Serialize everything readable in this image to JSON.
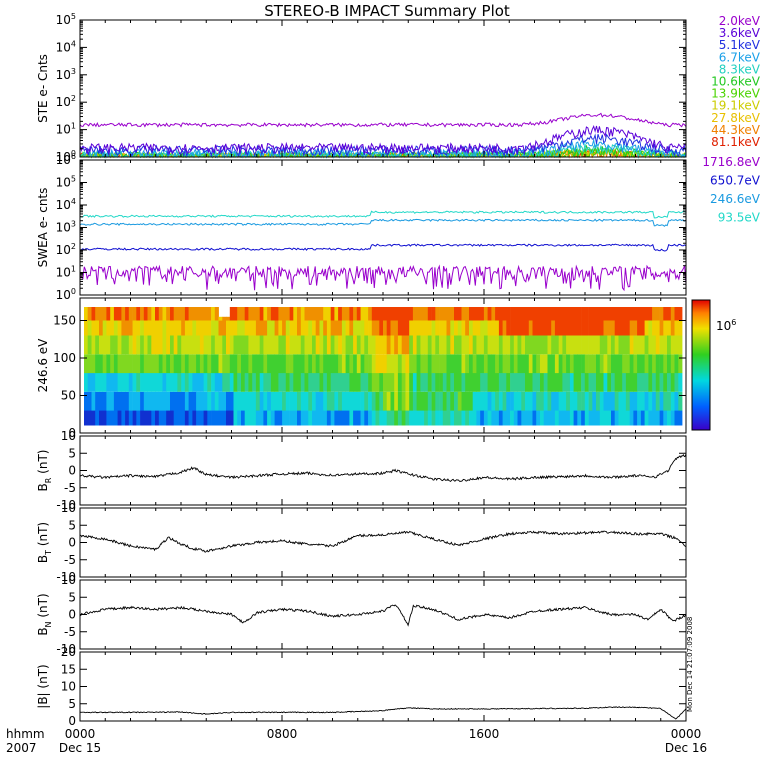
{
  "title": "STEREO-B IMPACT Summary Plot",
  "stamp": "Mon Dec 14 21:07:09 2008",
  "time_axis": {
    "corner_top": "hhmm",
    "corner_bottom": "2007",
    "ticks": [
      {
        "hour": 0,
        "label": "0000",
        "date": "Dec 15"
      },
      {
        "hour": 8,
        "label": "0800",
        "date": ""
      },
      {
        "hour": 16,
        "label": "1600",
        "date": ""
      },
      {
        "hour": 24,
        "label": "0000",
        "date": "Dec 16"
      }
    ]
  },
  "chart_data": [
    {
      "id": "ste",
      "type": "line",
      "ylabel": "STE e- Cnts",
      "yscale": "log",
      "ylim_exp": [
        0,
        5
      ],
      "x_range_hours": [
        0,
        24
      ],
      "series": [
        {
          "name": "2.0keV",
          "color": "#9900cc",
          "level": 15
        },
        {
          "name": "3.6keV",
          "color": "#5a00d8",
          "level": 2.2
        },
        {
          "name": "5.1keV",
          "color": "#2030e0",
          "level": 1.8
        },
        {
          "name": "6.7keV",
          "color": "#1aa0e8",
          "level": 1.4
        },
        {
          "name": "8.3keV",
          "color": "#22d0c0",
          "level": 1.2
        },
        {
          "name": "10.6keV",
          "color": "#22c822",
          "level": 1.1
        },
        {
          "name": "13.9keV",
          "color": "#4ad400",
          "level": 1.05
        },
        {
          "name": "19.1keV",
          "color": "#cccc00",
          "level": 1.02
        },
        {
          "name": "27.8keV",
          "color": "#e8c000",
          "level": 1.01
        },
        {
          "name": "44.3keV",
          "color": "#f08000",
          "level": 1.0
        },
        {
          "name": "81.1keV",
          "color": "#e02000",
          "level": 1.0
        }
      ]
    },
    {
      "id": "swea",
      "type": "line",
      "ylabel": "SWEA e- cnts",
      "yscale": "log",
      "ylim_exp": [
        0,
        6
      ],
      "x_range_hours": [
        0,
        24
      ],
      "series": [
        {
          "name": "1716.8eV",
          "color": "#9900cc",
          "level": 8
        },
        {
          "name": "650.7eV",
          "color": "#1010d0",
          "level": 110
        },
        {
          "name": "246.6eV",
          "color": "#1a9ae0",
          "level": 1400
        },
        {
          "name": "93.5eV",
          "color": "#22d8c8",
          "level": 3200
        }
      ]
    },
    {
      "id": "pad",
      "type": "heatmap",
      "ylabel": "246.6 eV",
      "ylim": [
        0,
        180
      ],
      "yticks": [
        0,
        50,
        100,
        150
      ],
      "x_range_hours": [
        0,
        24
      ],
      "colorbar_label": "10^6"
    },
    {
      "id": "br",
      "type": "line",
      "ylabel": "B_R (nT)",
      "ylabel_main": "B",
      "ylabel_sub": "R",
      "ylabel_unit": " (nT)",
      "ylim": [
        -10,
        10
      ],
      "yticks": [
        -10,
        -5,
        0,
        5,
        10
      ],
      "x_range_hours": [
        0,
        24
      ],
      "trace": [
        [
          0,
          -1.5
        ],
        [
          1,
          -2
        ],
        [
          2,
          -1.5
        ],
        [
          3,
          -1.8
        ],
        [
          4,
          -0.5
        ],
        [
          4.5,
          0.8
        ],
        [
          5,
          -1.2
        ],
        [
          6,
          -2
        ],
        [
          7,
          -1.5
        ],
        [
          8,
          -1
        ],
        [
          9,
          -0.8
        ],
        [
          10,
          -1.4
        ],
        [
          11,
          -1
        ],
        [
          12,
          -0.8
        ],
        [
          12.5,
          0
        ],
        [
          13,
          -1
        ],
        [
          14,
          -2.5
        ],
        [
          15,
          -3
        ],
        [
          16,
          -2
        ],
        [
          17,
          -2.5
        ],
        [
          18,
          -2
        ],
        [
          19,
          -1.8
        ],
        [
          20,
          -1.5
        ],
        [
          21,
          -2
        ],
        [
          22,
          -1.5
        ],
        [
          22.8,
          -1.8
        ],
        [
          23.3,
          0
        ],
        [
          23.6,
          3.5
        ],
        [
          24,
          4.5
        ]
      ]
    },
    {
      "id": "bt",
      "type": "line",
      "ylabel": "B_T (nT)",
      "ylabel_main": "B",
      "ylabel_sub": "T",
      "ylabel_unit": " (nT)",
      "ylim": [
        -10,
        10
      ],
      "yticks": [
        -10,
        -5,
        0,
        5,
        10
      ],
      "x_range_hours": [
        0,
        24
      ],
      "trace": [
        [
          0,
          2
        ],
        [
          1,
          1
        ],
        [
          2,
          -1
        ],
        [
          3,
          -2
        ],
        [
          3.5,
          1.5
        ],
        [
          4,
          -0.5
        ],
        [
          4.5,
          -1.8
        ],
        [
          5,
          -2.5
        ],
        [
          6,
          -1
        ],
        [
          7,
          0
        ],
        [
          8,
          0.5
        ],
        [
          9,
          -0.5
        ],
        [
          10,
          -1
        ],
        [
          10.5,
          0.5
        ],
        [
          11,
          2
        ],
        [
          12,
          2.2
        ],
        [
          13,
          3
        ],
        [
          14,
          1
        ],
        [
          15,
          -0.8
        ],
        [
          16,
          1
        ],
        [
          17,
          2.5
        ],
        [
          18,
          3
        ],
        [
          19,
          2.5
        ],
        [
          20,
          2.8
        ],
        [
          21,
          3
        ],
        [
          22,
          2.5
        ],
        [
          23,
          2.5
        ],
        [
          23.7,
          1
        ],
        [
          24,
          -1.5
        ]
      ]
    },
    {
      "id": "bn",
      "type": "line",
      "ylabel": "B_N (nT)",
      "ylabel_main": "B",
      "ylabel_sub": "N",
      "ylabel_unit": " (nT)",
      "ylim": [
        -10,
        10
      ],
      "yticks": [
        -10,
        -5,
        0,
        5,
        10
      ],
      "x_range_hours": [
        0,
        24
      ],
      "trace": [
        [
          0,
          0
        ],
        [
          1,
          1.5
        ],
        [
          2,
          2
        ],
        [
          3,
          1.5
        ],
        [
          4,
          2
        ],
        [
          5,
          1
        ],
        [
          6,
          0
        ],
        [
          6.5,
          -2.5
        ],
        [
          7,
          0.5
        ],
        [
          8,
          1.5
        ],
        [
          9,
          1
        ],
        [
          10,
          -0.5
        ],
        [
          11,
          0
        ],
        [
          12,
          1
        ],
        [
          12.5,
          3
        ],
        [
          13,
          -3
        ],
        [
          13.2,
          2.5
        ],
        [
          14,
          1.5
        ],
        [
          15,
          -1.5
        ],
        [
          16,
          0
        ],
        [
          17,
          -1
        ],
        [
          18,
          1
        ],
        [
          19,
          1.5
        ],
        [
          20,
          2
        ],
        [
          21,
          0
        ],
        [
          22,
          0
        ],
        [
          22.5,
          -1.5
        ],
        [
          23,
          1.5
        ],
        [
          23.5,
          -2
        ],
        [
          24,
          0
        ]
      ]
    },
    {
      "id": "bmag",
      "type": "line",
      "ylabel": "|B| (nT)",
      "ylabel_main": "|B|",
      "ylabel_sub": "",
      "ylabel_unit": " (nT)",
      "ylim": [
        0,
        20
      ],
      "yticks": [
        0,
        5,
        10,
        15,
        20
      ],
      "x_range_hours": [
        0,
        24
      ],
      "trace": [
        [
          0,
          2.5
        ],
        [
          2,
          2.5
        ],
        [
          4,
          2.6
        ],
        [
          5,
          2
        ],
        [
          6,
          2.5
        ],
        [
          8,
          2.5
        ],
        [
          10,
          2.5
        ],
        [
          12,
          3
        ],
        [
          12.5,
          3.5
        ],
        [
          13,
          3.8
        ],
        [
          14,
          3.5
        ],
        [
          16,
          3.5
        ],
        [
          18,
          3.6
        ],
        [
          20,
          3.7
        ],
        [
          21,
          4
        ],
        [
          22,
          4
        ],
        [
          23,
          3.6
        ],
        [
          23.6,
          0.5
        ],
        [
          24,
          3.5
        ]
      ]
    }
  ]
}
